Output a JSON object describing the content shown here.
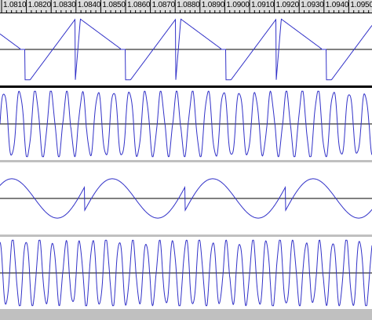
{
  "ruler": {
    "labels": [
      "1.0810",
      "1.0820",
      "1.0830",
      "1.0840",
      "1.0850",
      "1.0860",
      "1.0870",
      "1.0880",
      "1.0890",
      "1.0900",
      "1.0910",
      "1.0920",
      "1.0930",
      "1.0940",
      "1.0950"
    ]
  },
  "tracks": [
    {
      "id": "track-1",
      "shape": "sawtooth",
      "period": 128,
      "phase": 32
    },
    {
      "id": "track-2",
      "shape": "sine-mod",
      "period": 20,
      "phase": 0
    },
    {
      "id": "track-3",
      "shape": "sine-saw",
      "period": 128,
      "phase": 20
    },
    {
      "id": "track-4",
      "shape": "sine-mod",
      "period": 17,
      "phase": 5
    }
  ],
  "colors": {
    "waveform": "#3232c8",
    "background": "#ffffff",
    "ruler": "#dcdcdc",
    "separator": "#c0c0c0"
  }
}
